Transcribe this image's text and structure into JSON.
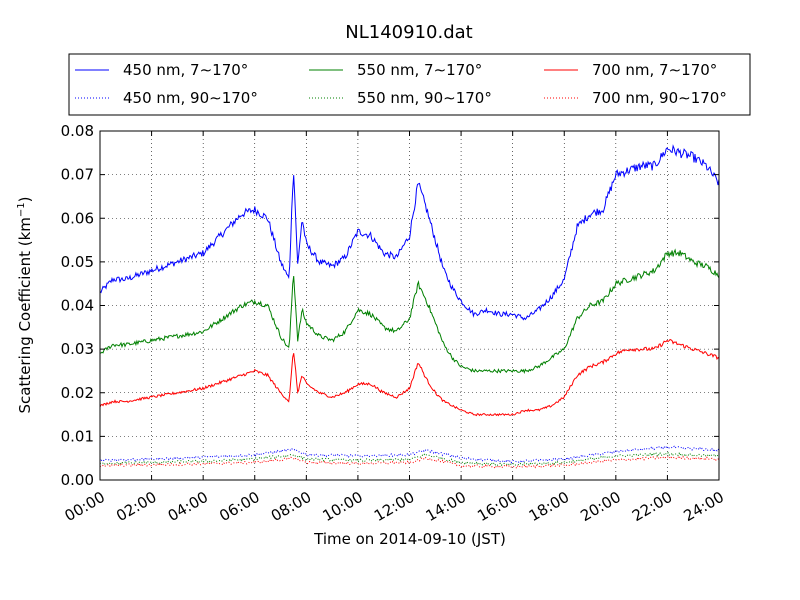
{
  "chart_data": {
    "type": "line",
    "title": "NL140910.dat",
    "xlabel": "Time on 2014-09-10 (JST)",
    "ylabel": "Scattering Coefficient (km",
    "ylabel_superscript": "−1",
    "ylabel_close": ")",
    "xlim": [
      "00:00",
      "24:00"
    ],
    "ylim": [
      0,
      0.08
    ],
    "x_ticks": [
      "00:00",
      "02:00",
      "04:00",
      "06:00",
      "08:00",
      "10:00",
      "12:00",
      "14:00",
      "16:00",
      "18:00",
      "20:00",
      "22:00",
      "24:00"
    ],
    "y_ticks": [
      "0.00",
      "0.01",
      "0.02",
      "0.03",
      "0.04",
      "0.05",
      "0.06",
      "0.07",
      "0.08"
    ],
    "grid": true,
    "legend_placement": "top, above plot, 3 columns",
    "series": [
      {
        "name": "450 nm, 7∼170°",
        "color": "#0000ff",
        "style": "solid",
        "x": [
          "00:00",
          "00:30",
          "01:00",
          "02:00",
          "03:00",
          "04:00",
          "05:00",
          "05:30",
          "06:00",
          "06:30",
          "07:00",
          "07:20",
          "07:30",
          "07:40",
          "07:50",
          "08:00",
          "08:30",
          "09:00",
          "09:30",
          "10:00",
          "10:30",
          "11:00",
          "11:30",
          "12:00",
          "12:20",
          "12:40",
          "13:00",
          "13:20",
          "13:40",
          "14:00",
          "14:30",
          "15:00",
          "15:30",
          "16:00",
          "16:30",
          "17:00",
          "17:30",
          "18:00",
          "18:30",
          "19:00",
          "19:30",
          "20:00",
          "20:30",
          "21:00",
          "21:30",
          "22:00",
          "22:30",
          "23:00",
          "23:30",
          "24:00"
        ],
        "y": [
          0.043,
          0.046,
          0.046,
          0.048,
          0.05,
          0.052,
          0.058,
          0.061,
          0.062,
          0.06,
          0.05,
          0.046,
          0.072,
          0.049,
          0.06,
          0.054,
          0.05,
          0.049,
          0.051,
          0.057,
          0.056,
          0.052,
          0.051,
          0.056,
          0.068,
          0.062,
          0.055,
          0.048,
          0.044,
          0.041,
          0.038,
          0.039,
          0.038,
          0.038,
          0.037,
          0.039,
          0.042,
          0.046,
          0.058,
          0.061,
          0.062,
          0.07,
          0.071,
          0.072,
          0.072,
          0.076,
          0.075,
          0.074,
          0.072,
          0.068
        ]
      },
      {
        "name": "550 nm, 7∼170°",
        "color": "#008000",
        "style": "solid",
        "x": [
          "00:00",
          "00:30",
          "01:00",
          "02:00",
          "03:00",
          "04:00",
          "05:00",
          "05:30",
          "06:00",
          "06:30",
          "07:00",
          "07:20",
          "07:30",
          "07:40",
          "07:50",
          "08:00",
          "08:30",
          "09:00",
          "09:30",
          "10:00",
          "10:30",
          "11:00",
          "11:30",
          "12:00",
          "12:20",
          "12:40",
          "13:00",
          "13:20",
          "13:40",
          "14:00",
          "14:30",
          "15:00",
          "15:30",
          "16:00",
          "16:30",
          "17:00",
          "17:30",
          "18:00",
          "18:30",
          "19:00",
          "19:30",
          "20:00",
          "20:30",
          "21:00",
          "21:30",
          "22:00",
          "22:30",
          "23:00",
          "23:30",
          "24:00"
        ],
        "y": [
          0.029,
          0.031,
          0.031,
          0.032,
          0.033,
          0.034,
          0.038,
          0.04,
          0.041,
          0.04,
          0.033,
          0.03,
          0.048,
          0.032,
          0.039,
          0.036,
          0.033,
          0.032,
          0.034,
          0.039,
          0.038,
          0.035,
          0.034,
          0.037,
          0.045,
          0.041,
          0.036,
          0.031,
          0.028,
          0.026,
          0.025,
          0.025,
          0.025,
          0.025,
          0.025,
          0.026,
          0.028,
          0.03,
          0.037,
          0.04,
          0.041,
          0.045,
          0.046,
          0.047,
          0.048,
          0.052,
          0.052,
          0.05,
          0.049,
          0.047
        ]
      },
      {
        "name": "700 nm, 7∼170°",
        "color": "#ff0000",
        "style": "solid",
        "x": [
          "00:00",
          "00:30",
          "01:00",
          "02:00",
          "03:00",
          "04:00",
          "05:00",
          "05:30",
          "06:00",
          "06:30",
          "07:00",
          "07:20",
          "07:30",
          "07:40",
          "07:50",
          "08:00",
          "08:30",
          "09:00",
          "09:30",
          "10:00",
          "10:30",
          "11:00",
          "11:30",
          "12:00",
          "12:20",
          "12:40",
          "13:00",
          "13:20",
          "13:40",
          "14:00",
          "14:30",
          "15:00",
          "15:30",
          "16:00",
          "16:30",
          "17:00",
          "17:30",
          "18:00",
          "18:30",
          "19:00",
          "19:30",
          "20:00",
          "20:30",
          "21:00",
          "21:30",
          "22:00",
          "22:30",
          "23:00",
          "23:30",
          "24:00"
        ],
        "y": [
          0.017,
          0.018,
          0.018,
          0.019,
          0.02,
          0.021,
          0.023,
          0.024,
          0.025,
          0.024,
          0.02,
          0.018,
          0.03,
          0.02,
          0.024,
          0.022,
          0.02,
          0.019,
          0.02,
          0.022,
          0.022,
          0.02,
          0.019,
          0.021,
          0.027,
          0.023,
          0.02,
          0.018,
          0.017,
          0.016,
          0.015,
          0.015,
          0.015,
          0.015,
          0.016,
          0.016,
          0.017,
          0.019,
          0.024,
          0.026,
          0.027,
          0.029,
          0.03,
          0.03,
          0.03,
          0.032,
          0.031,
          0.03,
          0.029,
          0.028
        ]
      },
      {
        "name": "450 nm, 90∼170°",
        "color": "#0000ff",
        "style": "dotted",
        "x": [
          "00:00",
          "02:00",
          "04:00",
          "06:00",
          "07:30",
          "08:00",
          "10:00",
          "12:00",
          "12:40",
          "14:00",
          "16:00",
          "18:00",
          "20:00",
          "22:00",
          "24:00"
        ],
        "y": [
          0.0045,
          0.0048,
          0.0052,
          0.0058,
          0.007,
          0.0058,
          0.0055,
          0.0058,
          0.0068,
          0.005,
          0.0042,
          0.0048,
          0.0065,
          0.0075,
          0.0068
        ]
      },
      {
        "name": "550 nm, 90∼170°",
        "color": "#008000",
        "style": "dotted",
        "x": [
          "00:00",
          "02:00",
          "04:00",
          "06:00",
          "07:30",
          "08:00",
          "10:00",
          "12:00",
          "12:40",
          "14:00",
          "16:00",
          "18:00",
          "20:00",
          "22:00",
          "24:00"
        ],
        "y": [
          0.0038,
          0.004,
          0.0043,
          0.0048,
          0.0058,
          0.0048,
          0.0045,
          0.0047,
          0.0058,
          0.004,
          0.0035,
          0.004,
          0.0055,
          0.006,
          0.0055
        ]
      },
      {
        "name": "700 nm, 90∼170°",
        "color": "#ff0000",
        "style": "dotted",
        "x": [
          "00:00",
          "02:00",
          "04:00",
          "06:00",
          "07:30",
          "08:00",
          "10:00",
          "12:00",
          "12:40",
          "14:00",
          "16:00",
          "18:00",
          "20:00",
          "22:00",
          "24:00"
        ],
        "y": [
          0.0033,
          0.0035,
          0.0037,
          0.004,
          0.005,
          0.004,
          0.0038,
          0.004,
          0.005,
          0.0033,
          0.003,
          0.0034,
          0.0046,
          0.0052,
          0.0048
        ]
      }
    ]
  }
}
